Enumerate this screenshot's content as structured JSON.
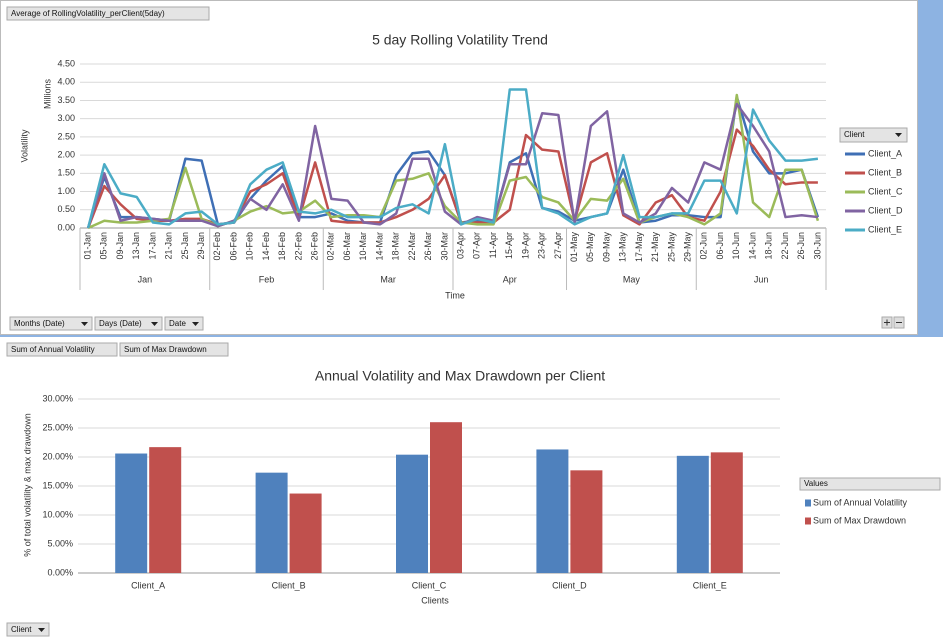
{
  "chart_data": [
    {
      "type": "line",
      "title": "5 day Rolling Volatility Trend",
      "y_label": "Volatility",
      "y_unit": "Millions",
      "x_label": "Time",
      "categories": [
        "01-Jan",
        "05-Jan",
        "09-Jan",
        "13-Jan",
        "17-Jan",
        "21-Jan",
        "25-Jan",
        "29-Jan",
        "02-Feb",
        "06-Feb",
        "10-Feb",
        "14-Feb",
        "18-Feb",
        "22-Feb",
        "26-Feb",
        "02-Mar",
        "06-Mar",
        "10-Mar",
        "14-Mar",
        "18-Mar",
        "22-Mar",
        "26-Mar",
        "30-Mar",
        "03-Apr",
        "07-Apr",
        "11-Apr",
        "15-Apr",
        "19-Apr",
        "23-Apr",
        "27-Apr",
        "01-May",
        "05-May",
        "09-May",
        "13-May",
        "17-May",
        "21-May",
        "25-May",
        "29-May",
        "02-Jun",
        "06-Jun",
        "10-Jun",
        "14-Jun",
        "18-Jun",
        "22-Jun",
        "26-Jun",
        "30-Jun"
      ],
      "groups": [
        "Jan",
        "Feb",
        "Mar",
        "Apr",
        "May",
        "Jun"
      ],
      "series": [
        {
          "name": "Client_A",
          "color": "#3f6fb5",
          "values": [
            0,
            1.4,
            0.3,
            0.3,
            0.25,
            0.2,
            1.9,
            1.85,
            0.1,
            0.15,
            0.8,
            1.3,
            1.7,
            0.3,
            0.3,
            0.4,
            0.2,
            0.15,
            0.15,
            1.45,
            2.05,
            2.1,
            1.45,
            0.15,
            0.2,
            0.2,
            1.8,
            2.05,
            0.55,
            0.45,
            0.2,
            0.3,
            0.4,
            1.6,
            0.15,
            0.2,
            0.35,
            0.35,
            0.3,
            0.3,
            3.6,
            2.1,
            1.5,
            1.5,
            1.6,
            0.3
          ]
        },
        {
          "name": "Client_B",
          "color": "#c0504d",
          "values": [
            0,
            1.15,
            0.65,
            0.25,
            0.2,
            0.2,
            0.25,
            0.25,
            0.1,
            0.15,
            1.0,
            1.2,
            1.5,
            0.25,
            1.8,
            0.2,
            0.15,
            0.15,
            0.15,
            0.3,
            0.5,
            0.8,
            1.45,
            0.15,
            0.15,
            0.15,
            0.5,
            2.55,
            2.15,
            2.1,
            0.2,
            1.8,
            2.05,
            0.35,
            0.1,
            0.7,
            0.9,
            0.3,
            0.2,
            1.0,
            2.7,
            2.25,
            1.6,
            1.2,
            1.25,
            1.25
          ]
        },
        {
          "name": "Client_C",
          "color": "#9bbb59",
          "values": [
            0,
            0.2,
            0.15,
            0.15,
            0.2,
            0.25,
            1.65,
            0.25,
            0.05,
            0.2,
            0.45,
            0.6,
            0.4,
            0.45,
            0.75,
            0.3,
            0.35,
            0.35,
            0.3,
            1.3,
            1.35,
            1.5,
            0.6,
            0.15,
            0.1,
            0.1,
            1.3,
            1.4,
            0.85,
            0.7,
            0.2,
            0.8,
            0.75,
            1.35,
            0.15,
            0.3,
            0.4,
            0.3,
            0.1,
            0.4,
            3.65,
            0.7,
            0.3,
            1.6,
            1.6,
            0.2
          ]
        },
        {
          "name": "Client_D",
          "color": "#8064a2",
          "values": [
            0,
            1.5,
            0.2,
            0.3,
            0.25,
            0.2,
            0.2,
            0.2,
            0.05,
            0.2,
            0.8,
            0.5,
            1.2,
            0.2,
            2.8,
            0.8,
            0.75,
            0.15,
            0.1,
            0.4,
            1.9,
            1.9,
            0.45,
            0.1,
            0.3,
            0.2,
            1.75,
            1.75,
            3.15,
            3.1,
            0.15,
            2.8,
            3.2,
            0.4,
            0.15,
            0.4,
            1.1,
            0.7,
            1.8,
            1.6,
            3.4,
            2.8,
            2.1,
            0.3,
            0.35,
            0.3
          ]
        },
        {
          "name": "Client_E",
          "color": "#4bacc6",
          "values": [
            0,
            1.75,
            0.95,
            0.85,
            0.15,
            0.1,
            0.4,
            0.45,
            0.1,
            0.15,
            1.2,
            1.6,
            1.8,
            0.45,
            0.4,
            0.5,
            0.3,
            0.3,
            0.3,
            0.55,
            0.65,
            0.4,
            2.3,
            0.1,
            0.25,
            0.15,
            3.8,
            3.8,
            0.55,
            0.4,
            0.1,
            0.3,
            0.4,
            2.0,
            0.3,
            0.3,
            0.4,
            0.4,
            1.3,
            1.3,
            0.4,
            3.25,
            2.4,
            1.85,
            1.85,
            1.9
          ]
        }
      ],
      "ylim": [
        0,
        4.5
      ],
      "yticks": [
        {
          "value": 0,
          "label": "0.00"
        },
        {
          "value": 0.5,
          "label": "0.50"
        },
        {
          "value": 1,
          "label": "1.00"
        },
        {
          "value": 1.5,
          "label": "1.50"
        },
        {
          "value": 2,
          "label": "2.00"
        },
        {
          "value": 2.5,
          "label": "2.50"
        },
        {
          "value": 3,
          "label": "3.00"
        },
        {
          "value": 3.5,
          "label": "3.50"
        },
        {
          "value": 4,
          "label": "4.00"
        },
        {
          "value": 4.5,
          "label": "4.50"
        }
      ],
      "grid": true,
      "legend": "right",
      "legend_title": "Client"
    },
    {
      "type": "bar",
      "title": "Annual Volatility and Max Drawdown per Client",
      "y_label": "% of total volatility & max drawdown",
      "x_label": "Clients",
      "categories": [
        "Client_A",
        "Client_B",
        "Client_C",
        "Client_D",
        "Client_E"
      ],
      "series": [
        {
          "name": "Sum of Annual Volatility",
          "color": "#4f81bd",
          "values": [
            20.6,
            17.3,
            20.4,
            21.3,
            20.2
          ]
        },
        {
          "name": "Sum of Max Drawdown",
          "color": "#c0504d",
          "values": [
            21.7,
            13.7,
            26.0,
            17.7,
            20.8
          ]
        }
      ],
      "ylim": [
        0,
        30
      ],
      "yticks": [
        {
          "value": 0,
          "label": "0.00%"
        },
        {
          "value": 5,
          "label": "5.00%"
        },
        {
          "value": 10,
          "label": "10.00%"
        },
        {
          "value": 15,
          "label": "15.00%"
        },
        {
          "value": 20,
          "label": "20.00%"
        },
        {
          "value": 25,
          "label": "25.00%"
        },
        {
          "value": 30,
          "label": "30.00%"
        }
      ],
      "grid": true,
      "legend": "right",
      "legend_title": "Values"
    }
  ],
  "field_buttons": {
    "top": "Average of RollingVolatility_perClient(5day)",
    "axis": [
      "Months (Date)",
      "Days (Date)",
      "Date"
    ],
    "values": [
      "Sum of Annual Volatility",
      "Sum of Max Drawdown"
    ],
    "bottom_axis": "Client"
  }
}
